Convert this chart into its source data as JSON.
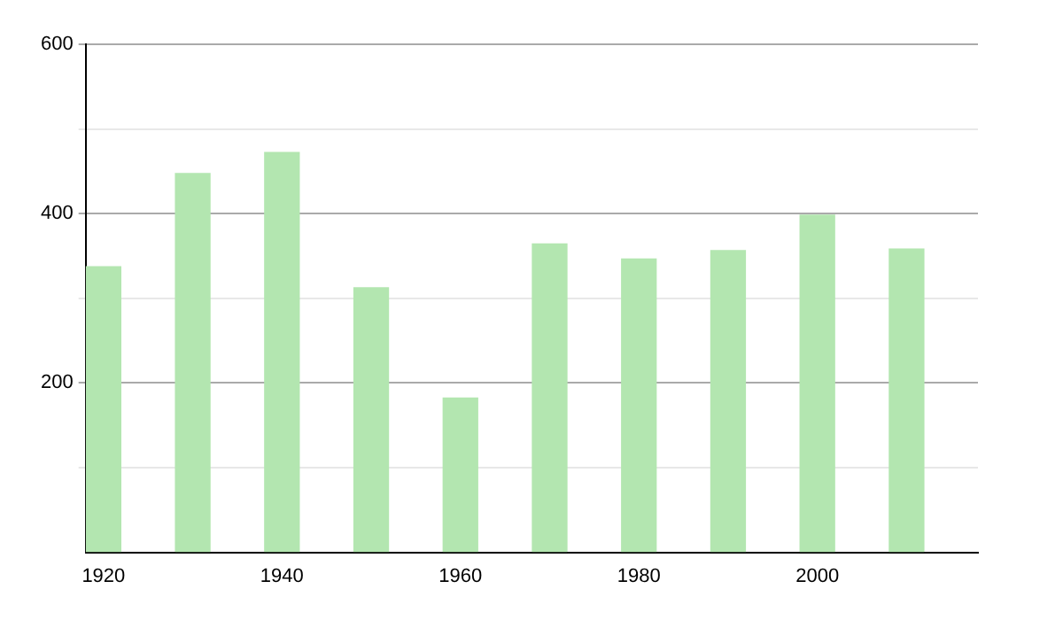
{
  "chart_data": {
    "type": "bar",
    "x": [
      1920,
      1930,
      1940,
      1950,
      1960,
      1970,
      1980,
      1990,
      2000,
      2010
    ],
    "values": [
      338,
      448,
      473,
      313,
      183,
      365,
      347,
      357,
      399,
      359
    ],
    "color": "#b3e6b0",
    "xlim": [
      1918,
      2018
    ],
    "xticks": [
      1920,
      1940,
      1960,
      1980,
      2000
    ],
    "ylim": [
      0,
      600
    ],
    "yticks": [
      {
        "value": 100,
        "label": null
      },
      200,
      {
        "value": 300,
        "label": null
      },
      400,
      {
        "value": 500,
        "label": null
      },
      600
    ],
    "grid": "y"
  }
}
